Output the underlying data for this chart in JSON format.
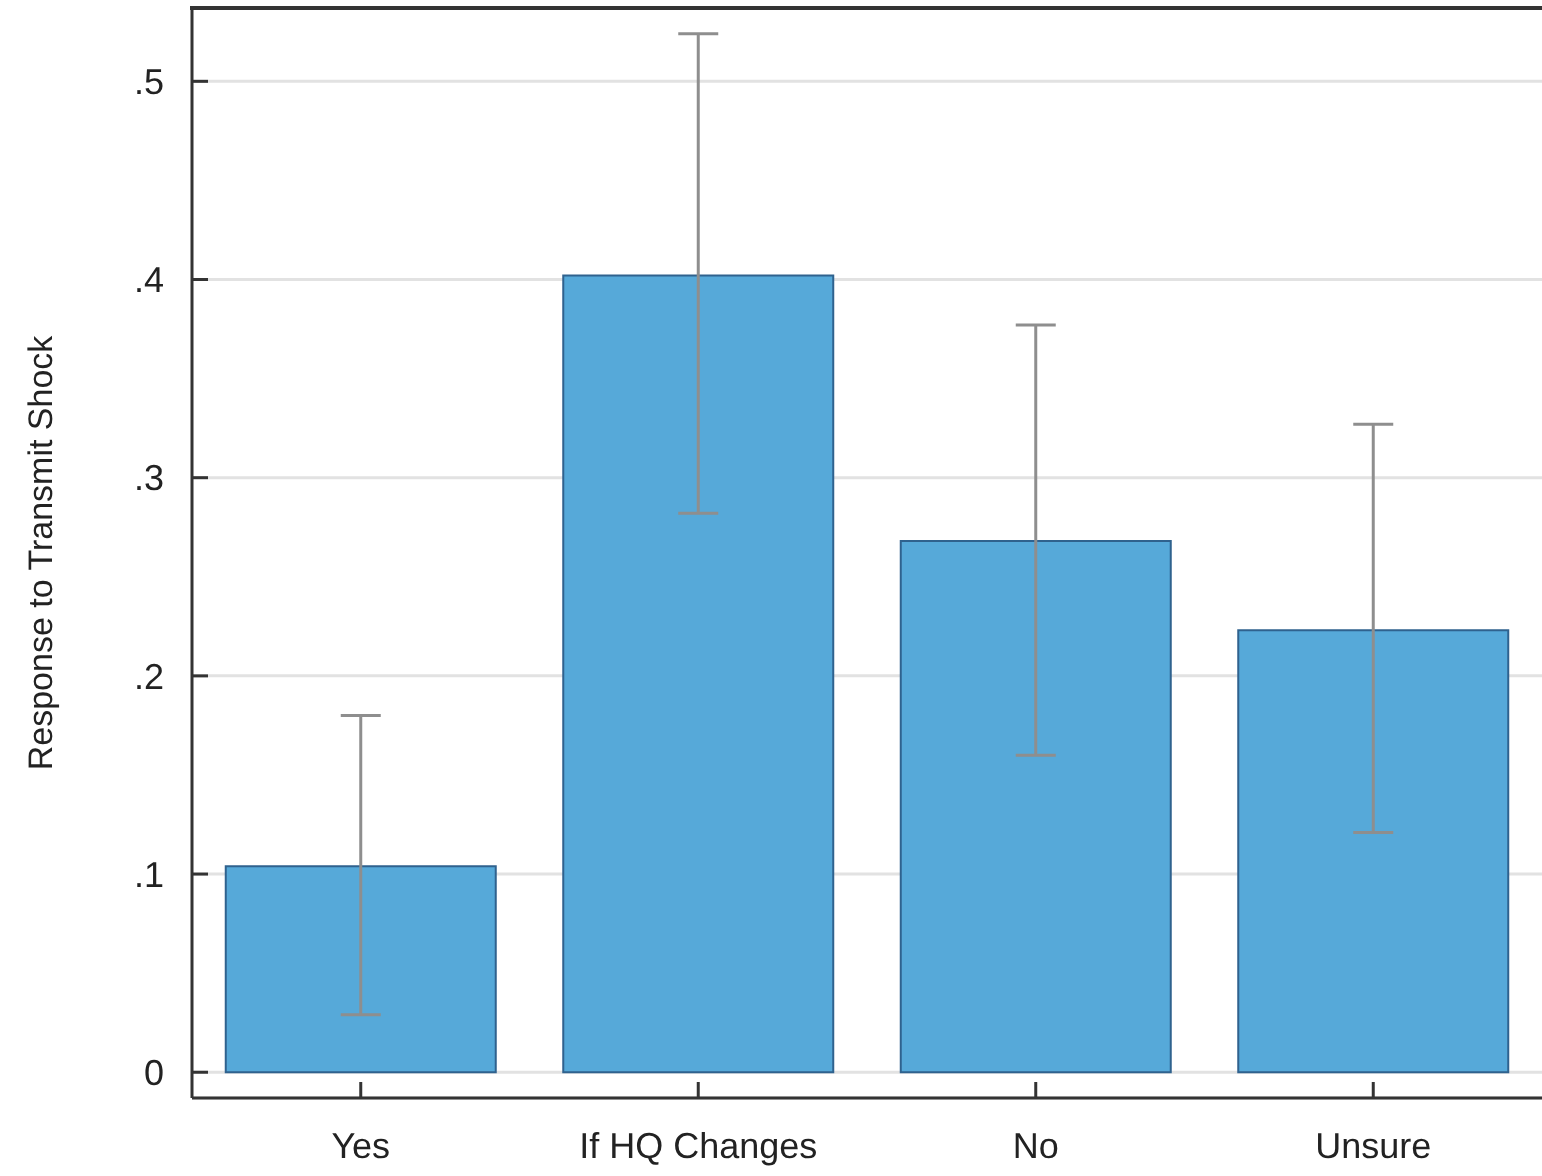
{
  "chart_data": {
    "type": "bar",
    "ylabel": "Response to Transmit Shock",
    "categories": [
      "Yes",
      "If HQ Changes",
      "No",
      "Unsure"
    ],
    "values": [
      0.104,
      0.402,
      0.268,
      0.223
    ],
    "color": "#56a9d9",
    "errors": [
      [
        0.029,
        0.18
      ],
      [
        0.282,
        0.524
      ],
      [
        0.16,
        0.377
      ],
      [
        0.121,
        0.327
      ]
    ],
    "ylim": [
      -0.013,
      0.537
    ],
    "yticks": [
      0,
      {
        "value": 0.1,
        "label": ".1"
      },
      {
        "value": 0.2,
        "label": ".2"
      },
      {
        "value": 0.3,
        "label": ".3"
      },
      {
        "value": 0.4,
        "label": ".4"
      },
      {
        "value": 0.5,
        "label": ".5"
      }
    ],
    "grid": "y"
  }
}
